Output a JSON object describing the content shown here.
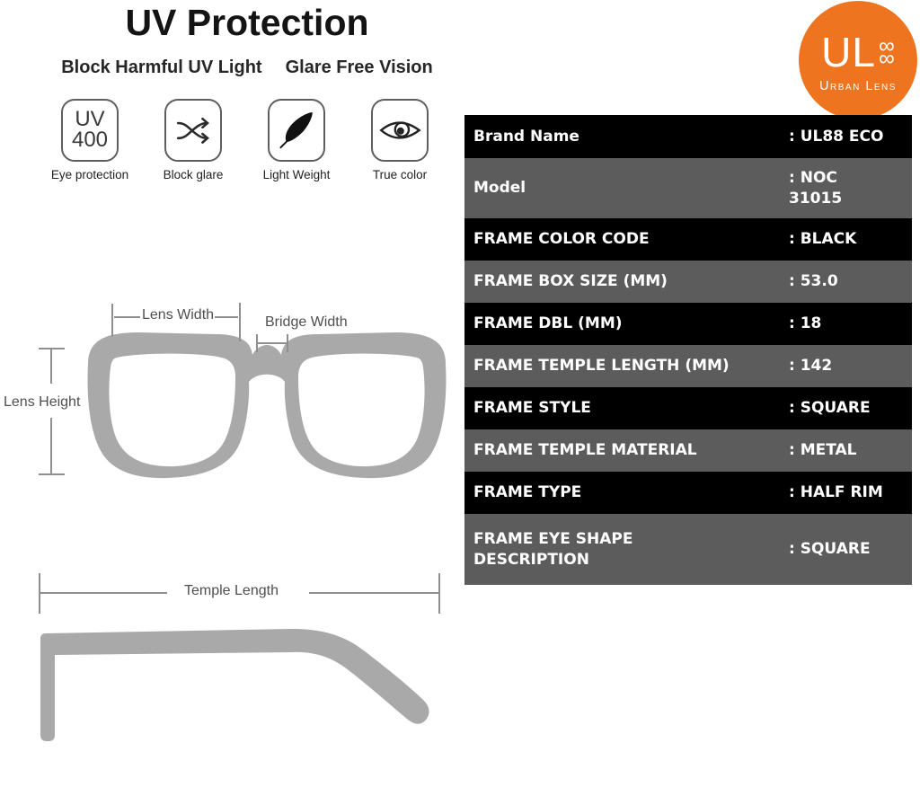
{
  "header": {
    "title": "UV Protection",
    "subtitle_left": "Block Harmful UV Light",
    "subtitle_right": "Glare Free Vision"
  },
  "features": [
    {
      "icon": "uv400-badge-icon",
      "badge_line1": "UV",
      "badge_line2": "400",
      "label": "Eye protection"
    },
    {
      "icon": "shuffle-arrows-icon",
      "label": "Block glare"
    },
    {
      "icon": "feather-icon",
      "label": "Light Weight"
    },
    {
      "icon": "eye-icon",
      "label": "True color"
    }
  ],
  "measurement_diagram": {
    "lens_width": "Lens Width",
    "bridge_width": "Bridge Width",
    "lens_height": "Lens Height",
    "temple_length": "Temple Length",
    "frame_color": "#a9a9a9",
    "line_color": "#8f8f8f",
    "label_color": "#4f4f4f"
  },
  "logo": {
    "monogram": "UL",
    "infinity_top": "∞",
    "infinity_bottom": "∞",
    "name": "Urban Lens",
    "bg_color": "#ee7420",
    "text_color": "#ffffff"
  },
  "spec_table": {
    "row_black_color": "#000000",
    "row_gray_color": "#5c5c5c",
    "text_color": "#ffffff",
    "rows": [
      {
        "label": "Brand Name",
        "value": ": UL88 ECO",
        "bg": "black"
      },
      {
        "label": "Model",
        "value": ": NOC\n31015",
        "bg": "gray"
      },
      {
        "label": "FRAME COLOR CODE",
        "value": ": BLACK",
        "bg": "black"
      },
      {
        "label": "FRAME BOX SIZE (MM)",
        "value": ": 53.0",
        "bg": "gray"
      },
      {
        "label": "FRAME DBL (MM)",
        "value": ": 18",
        "bg": "black"
      },
      {
        "label": "FRAME TEMPLE LENGTH (MM)",
        "value": ": 142",
        "bg": "gray"
      },
      {
        "label": "FRAME STYLE",
        "value": ": SQUARE",
        "bg": "black"
      },
      {
        "label": "FRAME TEMPLE MATERIAL",
        "value": ": METAL",
        "bg": "gray"
      },
      {
        "label": "FRAME TYPE",
        "value": ": HALF RIM",
        "bg": "black"
      },
      {
        "label": "FRAME EYE SHAPE\nDESCRIPTION",
        "value": ": SQUARE",
        "bg": "gray"
      }
    ]
  }
}
